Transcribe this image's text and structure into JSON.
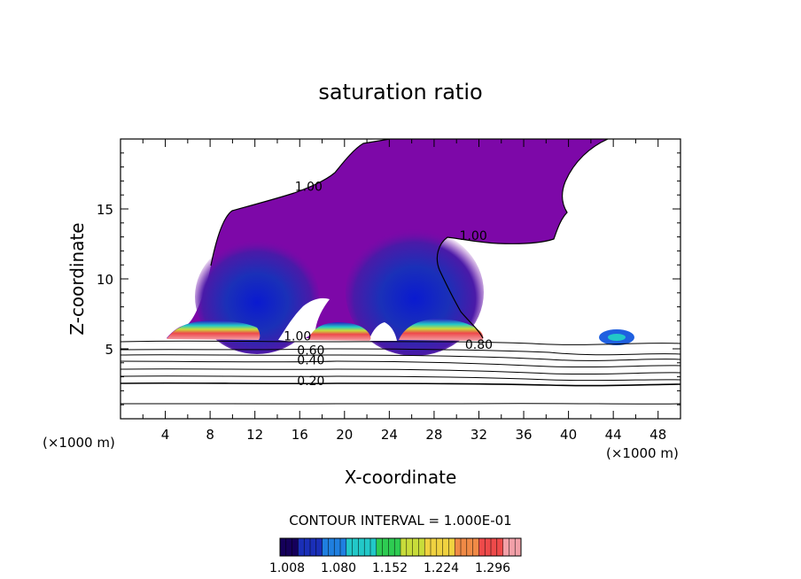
{
  "chart_data": {
    "type": "heatmap",
    "title": "saturation ratio",
    "xlabel": "X-coordinate",
    "ylabel": "Z-coordinate",
    "x_unit": "(×1000 m)",
    "x_unit_right": "(×1000 m)",
    "xlim": [
      0,
      50
    ],
    "ylim": [
      0,
      20
    ],
    "x_ticks": [
      "4",
      "8",
      "12",
      "16",
      "20",
      "24",
      "28",
      "32",
      "36",
      "40",
      "44",
      "48"
    ],
    "y_ticks": [
      "5",
      "10",
      "15"
    ],
    "contour_labels": [
      {
        "text": "1.00",
        "x": 16.8,
        "y": 16.3
      },
      {
        "text": "1.00",
        "x": 31.5,
        "y": 12.8
      },
      {
        "text": "1.00",
        "x": 15.8,
        "y": 5.6
      },
      {
        "text": "0.60",
        "x": 17.0,
        "y": 4.6
      },
      {
        "text": "0.40",
        "x": 17.0,
        "y": 3.9
      },
      {
        "text": "0.20",
        "x": 17.0,
        "y": 2.4
      },
      {
        "text": "0.80",
        "x": 32.0,
        "y": 5.0
      }
    ],
    "contour_interval": "CONTOUR INTERVAL = 1.000E-01",
    "colorbar": {
      "tick_labels": [
        "1.008",
        "1.080",
        "1.152",
        "1.224",
        "1.296"
      ],
      "colors": [
        "#15005a",
        "#1a2fb8",
        "#1f7fe0",
        "#22c8c8",
        "#2ecc52",
        "#c8dc3a",
        "#f0d240",
        "#f08a46",
        "#ee4a4a",
        "#f2a0a8"
      ]
    }
  }
}
